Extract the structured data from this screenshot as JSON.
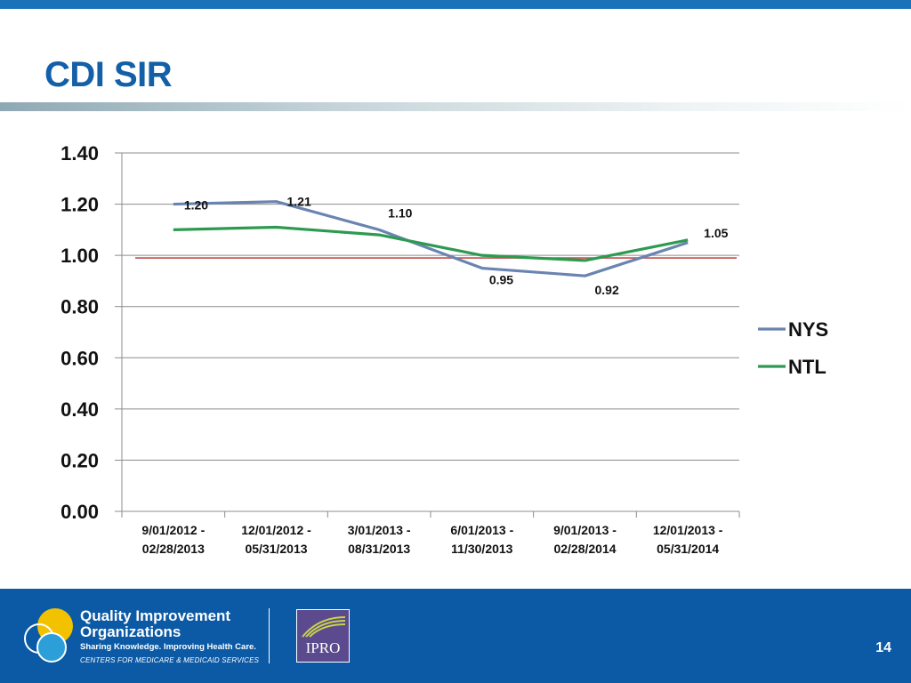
{
  "slide": {
    "title": "CDI SIR",
    "page_number": "14"
  },
  "footer": {
    "qio_name_line1": "Quality Improvement",
    "qio_name_line2": "Organizations",
    "qio_tagline": "Sharing Knowledge. Improving Health Care.",
    "qio_subline": "CENTERS FOR MEDICARE & MEDICAID SERVICES",
    "ipro_label": "IPRO"
  },
  "colors": {
    "brand_blue": "#0c5aa5",
    "title_blue": "#1460a8",
    "nys_line": "#6a84b1",
    "ntl_line": "#2e9a50",
    "reference_line": "#c0504d"
  },
  "chart_data": {
    "type": "line",
    "categories": [
      "9/01/2012 -\n02/28/2013",
      "12/01/2012 -\n05/31/2013",
      "3/01/2013 -\n08/31/2013",
      "6/01/2013 -\n11/30/2013",
      "9/01/2013 -\n02/28/2014",
      "12/01/2013 -\n05/31/2014"
    ],
    "series": [
      {
        "name": "NYS",
        "color": "#6a84b1",
        "values": [
          1.2,
          1.21,
          1.1,
          0.95,
          0.92,
          1.05
        ],
        "labels": [
          "1.20",
          "1.21",
          "1.10",
          "0.95",
          "0.92",
          "1.05"
        ]
      },
      {
        "name": "NTL",
        "color": "#2e9a50",
        "values": [
          1.1,
          1.11,
          1.08,
          1.0,
          0.98,
          1.06
        ]
      }
    ],
    "reference_line": {
      "value": 0.99,
      "color": "#c0504d"
    },
    "y_ticks": [
      "0.00",
      "0.20",
      "0.40",
      "0.60",
      "0.80",
      "1.00",
      "1.20",
      "1.40"
    ],
    "ylim": [
      0,
      1.4
    ],
    "grid": true,
    "legend": "right",
    "title": "",
    "xlabel": "",
    "ylabel": ""
  }
}
